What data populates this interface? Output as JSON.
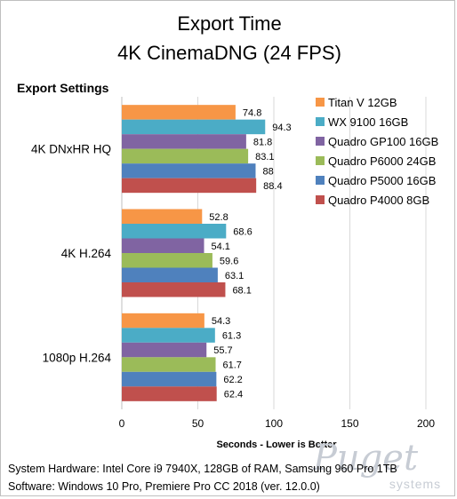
{
  "chart_data": {
    "type": "bar",
    "orientation": "horizontal",
    "title": "Export Time",
    "subtitle": "4K CinemaDNG (24 FPS)",
    "section_label": "Export Settings",
    "xlabel": "Seconds - Lower is Better",
    "xlim": [
      0,
      200
    ],
    "xticks": [
      0,
      50,
      100,
      150,
      200
    ],
    "grid": true,
    "legend_position": "right",
    "categories": [
      "4K DNxHR HQ",
      "4K H.264",
      "1080p H.264"
    ],
    "series": [
      {
        "name": "Titan V 12GB",
        "color": "#f79646",
        "values": [
          74.8,
          52.8,
          54.3
        ]
      },
      {
        "name": "WX 9100 16GB",
        "color": "#4bacc6",
        "values": [
          94.3,
          68.6,
          61.3
        ]
      },
      {
        "name": "Quadro GP100 16GB",
        "color": "#8064a2",
        "values": [
          81.8,
          54.1,
          55.7
        ]
      },
      {
        "name": "Quadro P6000 24GB",
        "color": "#9bbb59",
        "values": [
          83.1,
          59.6,
          61.7
        ]
      },
      {
        "name": "Quadro P5000 16GB",
        "color": "#4f81bd",
        "values": [
          88,
          63.1,
          62.2
        ]
      },
      {
        "name": "Quadro P4000 8GB",
        "color": "#c0504d",
        "values": [
          88.4,
          68.1,
          62.4
        ]
      }
    ]
  },
  "footer": {
    "line1": "System Hardware: Intel Core i9 7940X,  128GB of RAM, Samsung 960 Pro 1TB",
    "line2": "Software: Windows 10 Pro, Premiere Pro CC 2018  (ver. 12.0.0)"
  },
  "watermark": {
    "logo": "Puget",
    "sub": "systems"
  }
}
